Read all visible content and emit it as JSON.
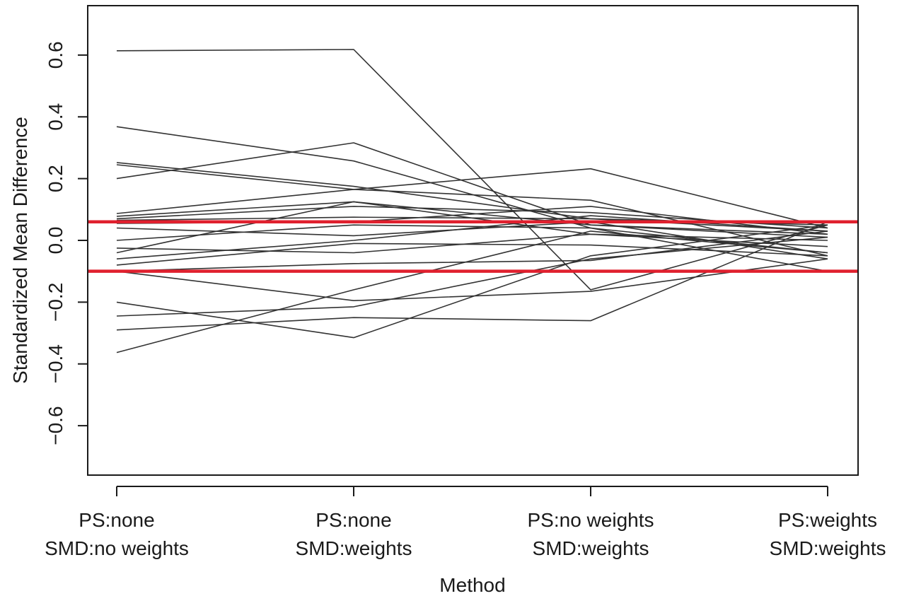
{
  "chart_data": {
    "type": "line",
    "title": "",
    "xlabel": "Method",
    "ylabel": "Standardized Mean Difference",
    "ylim": [
      -0.76,
      0.76
    ],
    "yticks": [
      -0.6,
      -0.4,
      -0.2,
      0.0,
      0.2,
      0.4,
      0.6
    ],
    "ytick_labels": [
      "−0.6",
      "−0.4",
      "−0.2",
      "0.0",
      "0.2",
      "0.4",
      "0.6"
    ],
    "categories": [
      [
        "PS:none",
        "SMD:no weights"
      ],
      [
        "PS:none",
        "SMD:weights"
      ],
      [
        "PS:no weights",
        "SMD:weights"
      ],
      [
        "PS:weights",
        "SMD:weights"
      ]
    ],
    "grid": false,
    "legend": "none",
    "line_color": "#333333",
    "reference_lines": {
      "values": [
        0.06,
        -0.1
      ],
      "color": "#e0202e"
    },
    "series": [
      {
        "values": [
          0.614,
          0.618,
          -0.16,
          0.05
        ]
      },
      {
        "values": [
          0.368,
          0.257,
          0.04,
          -0.04
        ]
      },
      {
        "values": [
          0.252,
          0.175,
          0.07,
          0.03
        ]
      },
      {
        "values": [
          0.245,
          0.165,
          0.13,
          -0.05
        ]
      },
      {
        "values": [
          0.2,
          0.316,
          0.05,
          0.02
        ]
      },
      {
        "values": [
          0.087,
          0.165,
          0.232,
          0.04
        ]
      },
      {
        "values": [
          0.078,
          0.125,
          0.05,
          0.01
        ]
      },
      {
        "values": [
          0.07,
          0.11,
          0.09,
          0.04
        ]
      },
      {
        "values": [
          0.065,
          0.075,
          0.07,
          0.05
        ]
      },
      {
        "values": [
          0.055,
          0.06,
          0.11,
          0.02
        ]
      },
      {
        "values": [
          0.04,
          0.015,
          0.06,
          -0.06
        ]
      },
      {
        "values": [
          -0.025,
          -0.04,
          0.02,
          0.0
        ]
      },
      {
        "values": [
          -0.04,
          0.125,
          0.02,
          -0.02
        ]
      },
      {
        "values": [
          -0.06,
          0.0,
          0.08,
          0.03
        ]
      },
      {
        "values": [
          -0.08,
          -0.01,
          -0.015,
          -0.05
        ]
      },
      {
        "values": [
          -0.1,
          -0.075,
          -0.065,
          0.03
        ]
      },
      {
        "values": [
          -0.1,
          -0.195,
          -0.165,
          -0.06
        ]
      },
      {
        "values": [
          -0.2,
          -0.315,
          -0.05,
          0.05
        ]
      },
      {
        "values": [
          -0.245,
          -0.215,
          -0.06,
          0.01
        ]
      },
      {
        "values": [
          -0.29,
          -0.25,
          -0.26,
          0.06
        ]
      },
      {
        "values": [
          -0.363,
          -0.16,
          0.03,
          -0.04
        ]
      },
      {
        "values": [
          0.0,
          0.05,
          0.04,
          -0.1
        ]
      }
    ]
  }
}
